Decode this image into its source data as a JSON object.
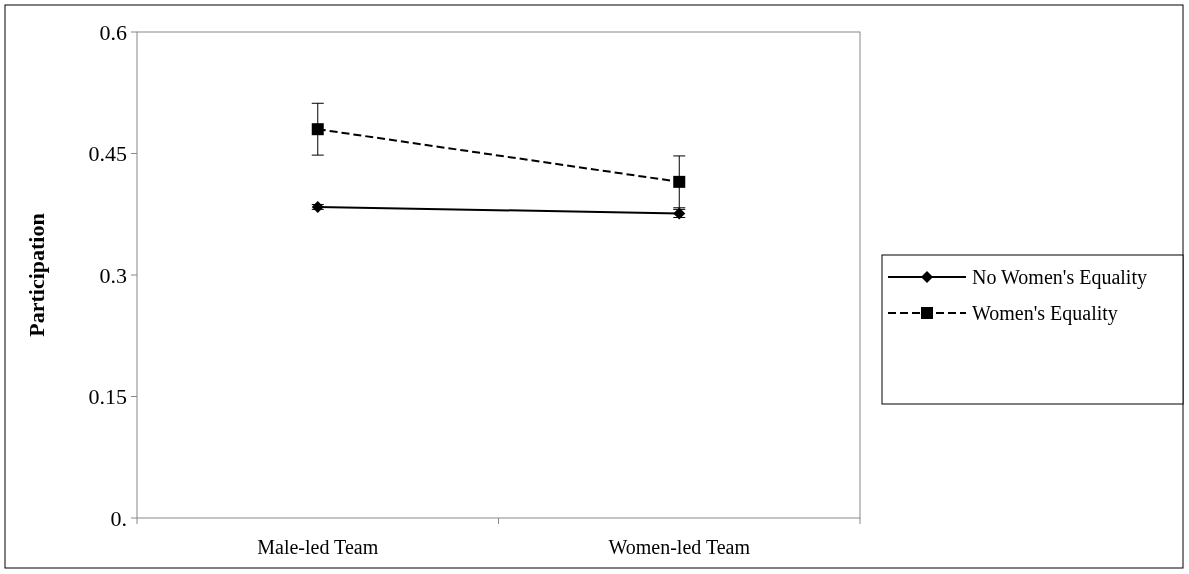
{
  "chart_data": {
    "type": "line",
    "ylabel": "Participation",
    "categories": [
      "Male-led Team",
      "Women-led Team"
    ],
    "series": [
      {
        "name": "No Women's Equality",
        "color": "#000000",
        "values": [
          0.384,
          0.376
        ],
        "errors": [
          0.003,
          0.005
        ],
        "marker": "diamond",
        "line_style": "solid"
      },
      {
        "name": "Women's Equality",
        "color": "#000000",
        "values": [
          0.48,
          0.415
        ],
        "errors": [
          0.032,
          0.032
        ],
        "marker": "square",
        "line_style": "dashed"
      }
    ],
    "ylim": [
      0,
      0.6
    ],
    "yticks": [
      {
        "value": 0,
        "label": "0."
      },
      0.15,
      0.3,
      0.45,
      0.6
    ],
    "legend": "right"
  }
}
